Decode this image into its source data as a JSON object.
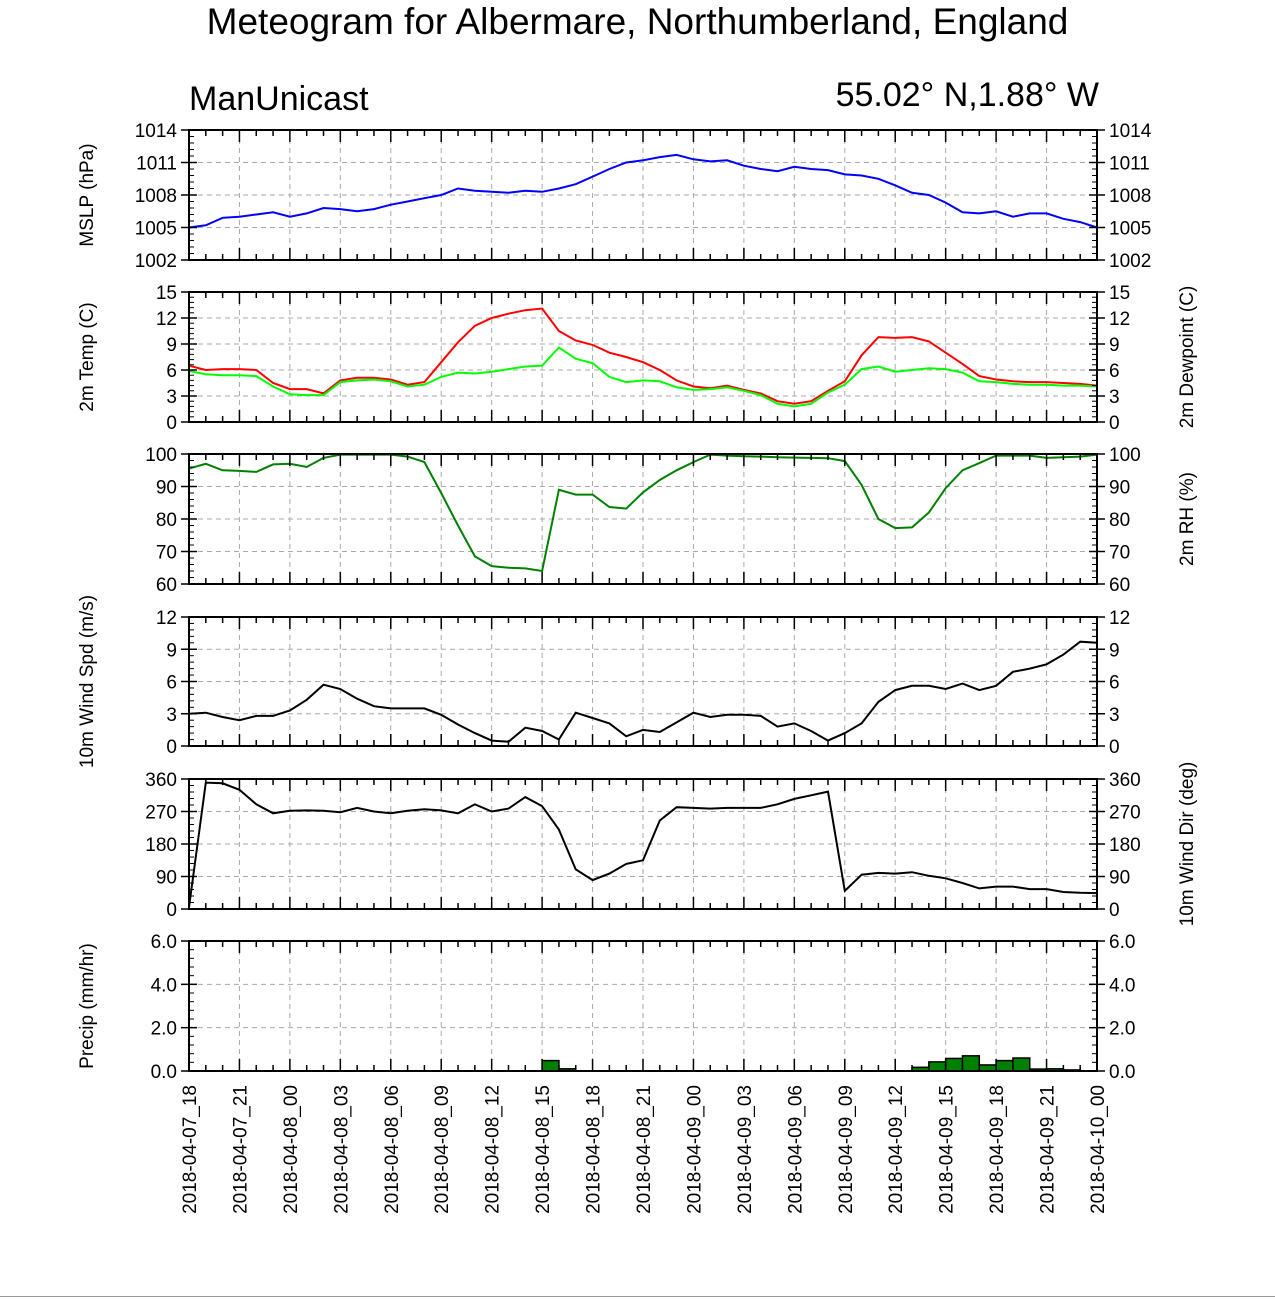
{
  "title": "Meteogram for Albermare, Northumberland, England",
  "subtitle_left": "ManUnicast",
  "subtitle_right": "55.02° N,1.88° W",
  "colors": {
    "mslp": "#0000ff",
    "temp": "#ff0000",
    "dewpoint": "#00ff00",
    "rh": "#008000",
    "wind": "#000000",
    "precip_fill": "#008000",
    "grid": "#aaaaaa"
  },
  "chart_data": {
    "type": "line",
    "x_tick_labels": [
      "2018-04-07_18",
      "2018-04-07_21",
      "2018-04-08_00",
      "2018-04-08_03",
      "2018-04-08_06",
      "2018-04-08_09",
      "2018-04-08_12",
      "2018-04-08_15",
      "2018-04-08_18",
      "2018-04-08_21",
      "2018-04-09_00",
      "2018-04-09_03",
      "2018-04-09_06",
      "2018-04-09_09",
      "2018-04-09_12",
      "2018-04-09_15",
      "2018-04-09_18",
      "2018-04-09_21",
      "2018-04-10_00"
    ],
    "hours": [
      0,
      1,
      2,
      3,
      4,
      5,
      6,
      7,
      8,
      9,
      10,
      11,
      12,
      13,
      14,
      15,
      16,
      17,
      18,
      19,
      20,
      21,
      22,
      23,
      24,
      25,
      26,
      27,
      28,
      29,
      30,
      31,
      32,
      33,
      34,
      35,
      36,
      37,
      38,
      39,
      40,
      41,
      42,
      43,
      44,
      45,
      46,
      47,
      48,
      49,
      50,
      51,
      52,
      53,
      54
    ],
    "panels": [
      {
        "id": "mslp",
        "left_label": "MSLP (hPa)",
        "right_label": "",
        "ylim": [
          1002,
          1014
        ],
        "ticks_left": [
          "1002",
          "1005",
          "1008",
          "1011",
          "1014"
        ],
        "ticks_right": [
          "1002",
          "1005",
          "1008",
          "1011",
          "1014"
        ],
        "series": [
          {
            "color_key": "mslp",
            "values": [
              1005.0,
              1005.2,
              1005.9,
              1006.0,
              1006.2,
              1006.4,
              1006.0,
              1006.3,
              1006.8,
              1006.7,
              1006.5,
              1006.7,
              1007.1,
              1007.4,
              1007.7,
              1008.0,
              1008.6,
              1008.4,
              1008.3,
              1008.2,
              1008.4,
              1008.3,
              1008.6,
              1009.0,
              1009.7,
              1010.4,
              1011.0,
              1011.2,
              1011.5,
              1011.7,
              1011.3,
              1011.1,
              1011.2,
              1010.7,
              1010.4,
              1010.2,
              1010.6,
              1010.4,
              1010.3,
              1009.9,
              1009.8,
              1009.5,
              1008.9,
              1008.2,
              1008.0,
              1007.3,
              1006.4,
              1006.3,
              1006.5,
              1006.0,
              1006.3,
              1006.3,
              1005.8,
              1005.5,
              1005.0
            ]
          }
        ]
      },
      {
        "id": "temp",
        "left_label": "2m Temp (C)",
        "right_label": "2m Dewpoint (C)",
        "ylim": [
          0,
          15
        ],
        "ticks_left": [
          "0",
          "3",
          "6",
          "9",
          "12",
          "15"
        ],
        "ticks_right": [
          "0",
          "3",
          "6",
          "9",
          "12",
          "15"
        ],
        "series": [
          {
            "color_key": "temp",
            "values": [
              6.5,
              6.0,
              6.1,
              6.1,
              6.0,
              4.5,
              3.8,
              3.8,
              3.3,
              4.8,
              5.1,
              5.1,
              4.9,
              4.3,
              4.6,
              6.9,
              9.2,
              11.1,
              12.0,
              12.5,
              12.9,
              13.1,
              10.5,
              9.4,
              8.9,
              8.0,
              7.5,
              6.9,
              6.0,
              4.8,
              4.1,
              3.9,
              4.2,
              3.7,
              3.3,
              2.4,
              2.1,
              2.4,
              3.6,
              4.7,
              7.7,
              9.8,
              9.7,
              9.8,
              9.3,
              8.0,
              6.7,
              5.3,
              4.9,
              4.7,
              4.6,
              4.6,
              4.5,
              4.4,
              4.2
            ]
          },
          {
            "color_key": "dewpoint",
            "values": [
              5.9,
              5.5,
              5.4,
              5.4,
              5.3,
              4.1,
              3.2,
              3.1,
              3.1,
              4.6,
              4.8,
              4.9,
              4.7,
              4.1,
              4.3,
              5.2,
              5.7,
              5.6,
              5.8,
              6.1,
              6.4,
              6.5,
              8.6,
              7.3,
              6.8,
              5.2,
              4.6,
              4.8,
              4.7,
              4.0,
              3.7,
              3.8,
              4.0,
              3.6,
              3.1,
              2.1,
              1.8,
              2.1,
              3.4,
              4.3,
              6.1,
              6.4,
              5.8,
              6.0,
              6.2,
              6.1,
              5.7,
              4.7,
              4.6,
              4.4,
              4.3,
              4.3,
              4.2,
              4.2,
              4.1
            ]
          }
        ]
      },
      {
        "id": "rh",
        "left_label": "",
        "right_label": "2m RH (%)",
        "ylim": [
          60,
          100
        ],
        "ticks_left": [
          "60",
          "70",
          "80",
          "90",
          "100"
        ],
        "ticks_right": [
          "60",
          "70",
          "80",
          "90",
          "100"
        ],
        "series": [
          {
            "color_key": "rh",
            "values": [
              95.5,
              97.0,
              95.0,
              94.8,
              94.5,
              96.8,
              97.0,
              96.0,
              98.8,
              99.8,
              99.8,
              99.8,
              99.8,
              99.2,
              97.5,
              88.0,
              78.0,
              68.5,
              65.5,
              65.0,
              64.8,
              64.0,
              89.0,
              87.5,
              87.5,
              83.7,
              83.2,
              88.2,
              92.0,
              95.0,
              97.5,
              99.8,
              99.5,
              99.3,
              99.2,
              99.0,
              98.9,
              98.8,
              98.7,
              97.8,
              90.5,
              80.0,
              77.2,
              77.4,
              82.0,
              89.5,
              95.0,
              97.2,
              99.5,
              99.5,
              99.5,
              98.8,
              99.0,
              99.2,
              99.8
            ]
          }
        ]
      },
      {
        "id": "wspd",
        "left_label": "10m Wind Spd (m/s)",
        "right_label": "",
        "ylim": [
          0,
          12
        ],
        "ticks_left": [
          "0",
          "3",
          "6",
          "9",
          "12"
        ],
        "ticks_right": [
          "0",
          "3",
          "6",
          "9",
          "12"
        ],
        "series": [
          {
            "color_key": "wind",
            "values": [
              3.0,
              3.1,
              2.7,
              2.4,
              2.8,
              2.8,
              3.3,
              4.3,
              5.7,
              5.3,
              4.4,
              3.7,
              3.5,
              3.5,
              3.5,
              2.9,
              2.0,
              1.2,
              0.5,
              0.4,
              1.7,
              1.4,
              0.6,
              3.1,
              2.6,
              2.1,
              0.9,
              1.5,
              1.3,
              2.2,
              3.1,
              2.7,
              2.9,
              2.9,
              2.8,
              1.8,
              2.1,
              1.4,
              0.5,
              1.2,
              2.1,
              4.1,
              5.2,
              5.6,
              5.6,
              5.3,
              5.8,
              5.2,
              5.6,
              6.9,
              7.2,
              7.6,
              8.5,
              9.7,
              9.6
            ]
          }
        ]
      },
      {
        "id": "wdir",
        "left_label": "",
        "right_label": "10m Wind Dir (deg)",
        "ylim": [
          0,
          360
        ],
        "ticks_left": [
          "0",
          "90",
          "180",
          "270",
          "360"
        ],
        "ticks_right": [
          "0",
          "90",
          "180",
          "270",
          "360"
        ],
        "series": [
          {
            "color_key": "wind",
            "values": [
              5,
              350,
              348,
              330,
              290,
              265,
              272,
              273,
              272,
              268,
              280,
              270,
              265,
              272,
              276,
              273,
              265,
              290,
              270,
              278,
              310,
              285,
              220,
              110,
              80,
              98,
              125,
              135,
              245,
              282,
              280,
              278,
              280,
              280,
              280,
              290,
              305,
              315,
              325,
              50,
              95,
              100,
              98,
              102,
              92,
              85,
              72,
              57,
              62,
              62,
              55,
              55,
              47,
              45,
              44
            ]
          }
        ]
      },
      {
        "id": "precip",
        "left_label": "Precip (mm/hr)",
        "right_label": "",
        "ylim": [
          0,
          6
        ],
        "ticks_left": [
          "0.0",
          "2.0",
          "4.0",
          "6.0"
        ],
        "ticks_right": [
          "0.0",
          "2.0",
          "4.0",
          "6.0"
        ],
        "bars": [
          {
            "hour": 21,
            "value": 0.48
          },
          {
            "hour": 22,
            "value": 0.1
          },
          {
            "hour": 43,
            "value": 0.17
          },
          {
            "hour": 44,
            "value": 0.42
          },
          {
            "hour": 45,
            "value": 0.58
          },
          {
            "hour": 46,
            "value": 0.7
          },
          {
            "hour": 47,
            "value": 0.28
          },
          {
            "hour": 48,
            "value": 0.48
          },
          {
            "hour": 49,
            "value": 0.6
          },
          {
            "hour": 50,
            "value": 0.09
          },
          {
            "hour": 51,
            "value": 0.1
          },
          {
            "hour": 52,
            "value": 0.05
          }
        ]
      }
    ]
  }
}
